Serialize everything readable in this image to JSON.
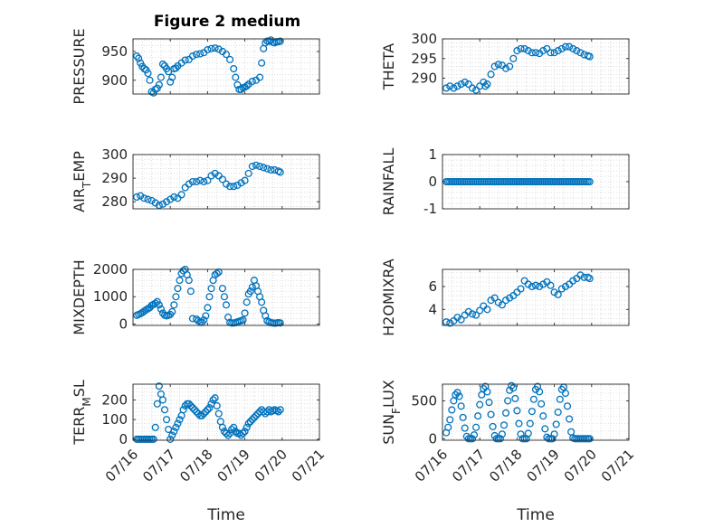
{
  "figure_title": "Figure 2 medium",
  "colors": {
    "marker": "#0072BD",
    "axis": "#262626",
    "grid": "#cfcfcf"
  },
  "shared_x": {
    "label": "Time",
    "ticks": [
      16,
      17,
      18,
      19,
      20,
      21
    ],
    "tick_labels": [
      "07/16",
      "07/17",
      "07/18",
      "07/19",
      "07/20",
      "07/21"
    ],
    "range": [
      16,
      21
    ]
  },
  "chart_data": [
    {
      "type": "scatter",
      "ylabel": "PRESSURE",
      "ylim": [
        876,
        972
      ],
      "yticks": [
        900,
        950
      ],
      "grid": true,
      "x": [
        16.1,
        16.15,
        16.2,
        16.25,
        16.3,
        16.35,
        16.4,
        16.45,
        16.5,
        16.55,
        16.6,
        16.65,
        16.7,
        16.75,
        16.8,
        16.85,
        16.9,
        16.95,
        17.0,
        17.05,
        17.1,
        17.15,
        17.2,
        17.3,
        17.4,
        17.5,
        17.6,
        17.7,
        17.8,
        17.9,
        18.0,
        18.1,
        18.2,
        18.3,
        18.4,
        18.5,
        18.6,
        18.7,
        18.75,
        18.8,
        18.85,
        18.9,
        18.95,
        19.0,
        19.05,
        19.1,
        19.2,
        19.3,
        19.4,
        19.45,
        19.5,
        19.55,
        19.6,
        19.65,
        19.7,
        19.75,
        19.8,
        19.85,
        19.9,
        19.95
      ],
      "y": [
        942,
        938,
        930,
        924,
        920,
        918,
        912,
        900,
        880,
        878,
        884,
        886,
        892,
        905,
        928,
        925,
        920,
        915,
        897,
        905,
        920,
        921,
        925,
        930,
        935,
        936,
        942,
        945,
        946,
        948,
        953,
        955,
        956,
        954,
        950,
        945,
        936,
        920,
        905,
        892,
        884,
        884,
        887,
        888,
        890,
        893,
        898,
        900,
        905,
        930,
        955,
        965,
        968,
        968,
        970,
        966,
        965,
        967,
        967,
        968
      ]
    },
    {
      "type": "scatter",
      "ylabel": "THETA",
      "ylim": [
        286,
        300
      ],
      "yticks": [
        290,
        295,
        300
      ],
      "grid": true,
      "x": [
        16.1,
        16.2,
        16.3,
        16.4,
        16.5,
        16.6,
        16.7,
        16.8,
        16.9,
        17.0,
        17.1,
        17.15,
        17.2,
        17.3,
        17.4,
        17.5,
        17.6,
        17.7,
        17.8,
        17.9,
        18.0,
        18.1,
        18.2,
        18.3,
        18.4,
        18.5,
        18.6,
        18.7,
        18.8,
        18.9,
        19.0,
        19.1,
        19.2,
        19.3,
        19.4,
        19.5,
        19.6,
        19.7,
        19.8,
        19.9,
        19.95
      ],
      "y": [
        287.5,
        288,
        287.5,
        288,
        288.5,
        289,
        288.5,
        287.5,
        287,
        288,
        289,
        288,
        288.5,
        291,
        293,
        293.5,
        293.3,
        292.5,
        293,
        295,
        297,
        297.5,
        297.5,
        297,
        296.5,
        296.5,
        296.3,
        297,
        297.5,
        296.5,
        296.5,
        297,
        297.5,
        298,
        298,
        297.5,
        297,
        296.5,
        296,
        295.7,
        295.5
      ]
    },
    {
      "type": "scatter",
      "ylabel": "AIR_TEMP",
      "ylim": [
        277,
        300
      ],
      "yticks": [
        280,
        290,
        300
      ],
      "grid": true,
      "x": [
        16.1,
        16.2,
        16.3,
        16.4,
        16.5,
        16.6,
        16.7,
        16.8,
        16.9,
        17.0,
        17.1,
        17.2,
        17.3,
        17.4,
        17.5,
        17.6,
        17.7,
        17.8,
        17.9,
        18.0,
        18.1,
        18.2,
        18.3,
        18.4,
        18.5,
        18.6,
        18.7,
        18.8,
        18.9,
        19.0,
        19.1,
        19.2,
        19.3,
        19.4,
        19.5,
        19.6,
        19.7,
        19.8,
        19.9,
        19.95
      ],
      "y": [
        282,
        282.5,
        281.5,
        281,
        280.5,
        279.5,
        278.5,
        279,
        280,
        281,
        282,
        281.5,
        283,
        286,
        287.5,
        288.5,
        288.5,
        289,
        288.5,
        289,
        291,
        292,
        291,
        289.5,
        287.5,
        286.5,
        286.5,
        287,
        288,
        289,
        292,
        295,
        295.5,
        295,
        294.5,
        294,
        293.5,
        293.5,
        293,
        292.5
      ]
    },
    {
      "type": "scatter",
      "ylabel": "RAINFALL",
      "ylim": [
        -1,
        1
      ],
      "yticks": [
        -1,
        0,
        1
      ],
      "grid": true,
      "x_range": [
        16.1,
        19.95
      ],
      "y_constant": 0,
      "n_points": 80
    },
    {
      "type": "scatter",
      "ylabel": "MIXDEPTH",
      "ylim": [
        -50,
        2000
      ],
      "yticks": [
        0,
        1000,
        2000
      ],
      "grid": true,
      "x": [
        16.1,
        16.15,
        16.2,
        16.25,
        16.3,
        16.35,
        16.4,
        16.45,
        16.5,
        16.55,
        16.6,
        16.65,
        16.7,
        16.75,
        16.8,
        16.85,
        16.9,
        16.95,
        17.0,
        17.05,
        17.1,
        17.15,
        17.2,
        17.25,
        17.3,
        17.35,
        17.4,
        17.45,
        17.5,
        17.55,
        17.6,
        17.7,
        17.75,
        17.8,
        17.85,
        17.9,
        17.95,
        18.0,
        18.05,
        18.1,
        18.15,
        18.2,
        18.25,
        18.3,
        18.4,
        18.45,
        18.5,
        18.55,
        18.6,
        18.65,
        18.7,
        18.75,
        18.8,
        18.85,
        18.9,
        18.95,
        19.0,
        19.05,
        19.1,
        19.15,
        19.2,
        19.25,
        19.3,
        19.35,
        19.4,
        19.45,
        19.5,
        19.55,
        19.6,
        19.65,
        19.7,
        19.75,
        19.8,
        19.85,
        19.9,
        19.95
      ],
      "y": [
        320,
        350,
        380,
        420,
        470,
        520,
        560,
        600,
        680,
        720,
        760,
        820,
        700,
        550,
        400,
        320,
        300,
        320,
        350,
        450,
        700,
        1000,
        1300,
        1600,
        1850,
        1950,
        2000,
        1800,
        1600,
        1200,
        200,
        180,
        120,
        80,
        60,
        150,
        300,
        600,
        1000,
        1300,
        1600,
        1800,
        1850,
        1900,
        1300,
        1000,
        700,
        250,
        60,
        40,
        40,
        50,
        80,
        100,
        120,
        150,
        400,
        800,
        1100,
        1200,
        1350,
        1600,
        1400,
        1200,
        1000,
        800,
        500,
        300,
        120,
        80,
        50,
        40,
        30,
        40,
        50,
        40
      ]
    },
    {
      "type": "scatter",
      "ylabel": "H2OMIXRA",
      "ylim": [
        2.6,
        7.5
      ],
      "yticks": [
        4,
        6
      ],
      "grid": true,
      "x": [
        16.1,
        16.2,
        16.3,
        16.4,
        16.5,
        16.6,
        16.7,
        16.8,
        16.9,
        17.0,
        17.1,
        17.2,
        17.3,
        17.4,
        17.5,
        17.6,
        17.7,
        17.8,
        17.9,
        18.0,
        18.1,
        18.2,
        18.3,
        18.4,
        18.5,
        18.6,
        18.7,
        18.8,
        18.9,
        19.0,
        19.1,
        19.2,
        19.3,
        19.4,
        19.5,
        19.6,
        19.7,
        19.8,
        19.9,
        19.95
      ],
      "y": [
        2.9,
        2.8,
        3.0,
        3.3,
        3.1,
        3.5,
        3.8,
        3.6,
        3.5,
        3.9,
        4.3,
        4.0,
        4.8,
        5.0,
        4.6,
        4.4,
        4.8,
        5.0,
        5.2,
        5.5,
        5.8,
        6.5,
        6.2,
        6.0,
        6.1,
        6.0,
        6.2,
        6.4,
        6.1,
        5.5,
        5.3,
        5.8,
        6.0,
        6.2,
        6.5,
        6.7,
        7.0,
        6.8,
        6.8,
        6.7
      ]
    },
    {
      "type": "scatter",
      "ylabel": "TERR_MSL",
      "ylim": [
        -5,
        280
      ],
      "yticks": [
        0,
        100,
        200
      ],
      "grid": true,
      "x": [
        16.1,
        16.15,
        16.2,
        16.25,
        16.3,
        16.35,
        16.4,
        16.45,
        16.5,
        16.55,
        16.6,
        16.65,
        16.7,
        16.75,
        16.8,
        16.85,
        16.9,
        16.95,
        17.0,
        17.05,
        17.1,
        17.15,
        17.2,
        17.25,
        17.3,
        17.35,
        17.4,
        17.45,
        17.5,
        17.55,
        17.6,
        17.65,
        17.7,
        17.75,
        17.8,
        17.85,
        17.9,
        17.95,
        18.0,
        18.05,
        18.1,
        18.15,
        18.2,
        18.25,
        18.3,
        18.35,
        18.4,
        18.45,
        18.5,
        18.55,
        18.6,
        18.65,
        18.7,
        18.75,
        18.8,
        18.85,
        18.9,
        18.95,
        19.0,
        19.05,
        19.1,
        19.15,
        19.2,
        19.25,
        19.3,
        19.35,
        19.4,
        19.45,
        19.5,
        19.55,
        19.6,
        19.65,
        19.7,
        19.75,
        19.8,
        19.85,
        19.9,
        19.95
      ],
      "y": [
        0,
        0,
        0,
        0,
        0,
        0,
        0,
        0,
        0,
        0,
        60,
        180,
        270,
        230,
        200,
        150,
        100,
        50,
        0,
        20,
        40,
        60,
        80,
        100,
        120,
        150,
        170,
        180,
        180,
        170,
        160,
        150,
        140,
        130,
        120,
        120,
        130,
        140,
        150,
        160,
        180,
        200,
        210,
        170,
        130,
        90,
        60,
        40,
        30,
        20,
        30,
        50,
        60,
        40,
        30,
        30,
        20,
        30,
        40,
        60,
        80,
        90,
        100,
        110,
        120,
        130,
        140,
        150,
        140,
        130,
        140,
        150,
        140,
        145,
        150,
        145,
        140,
        150
      ]
    },
    {
      "type": "scatter",
      "ylabel": "SUN_FLUX",
      "ylim": [
        -20,
        720
      ],
      "yticks": [
        0,
        500
      ],
      "grid": true,
      "x": [
        16.1,
        16.15,
        16.2,
        16.25,
        16.3,
        16.35,
        16.4,
        16.45,
        16.5,
        16.55,
        16.6,
        16.65,
        16.7,
        16.75,
        16.8,
        16.85,
        16.9,
        16.95,
        17.0,
        17.05,
        17.1,
        17.15,
        17.2,
        17.25,
        17.3,
        17.35,
        17.4,
        17.45,
        17.5,
        17.55,
        17.6,
        17.65,
        17.7,
        17.75,
        17.8,
        17.85,
        17.9,
        17.95,
        18.0,
        18.05,
        18.1,
        18.15,
        18.2,
        18.25,
        18.3,
        18.35,
        18.4,
        18.45,
        18.5,
        18.55,
        18.6,
        18.65,
        18.7,
        18.75,
        18.8,
        18.85,
        18.9,
        18.95,
        19.0,
        19.05,
        19.1,
        19.15,
        19.2,
        19.25,
        19.3,
        19.35,
        19.4,
        19.45,
        19.5,
        19.55,
        19.6,
        19.65,
        19.7,
        19.75,
        19.8,
        19.85,
        19.9,
        19.95
      ],
      "y": [
        80,
        150,
        250,
        380,
        500,
        580,
        610,
        560,
        430,
        280,
        140,
        30,
        0,
        0,
        0,
        50,
        150,
        300,
        450,
        580,
        660,
        690,
        620,
        480,
        320,
        160,
        40,
        0,
        0,
        0,
        60,
        180,
        340,
        500,
        640,
        700,
        670,
        530,
        370,
        200,
        60,
        0,
        0,
        0,
        70,
        200,
        360,
        520,
        650,
        690,
        620,
        460,
        300,
        130,
        20,
        0,
        0,
        0,
        60,
        190,
        350,
        520,
        650,
        680,
        600,
        430,
        260,
        90,
        10,
        0,
        0,
        0,
        0,
        0,
        0,
        0,
        0,
        0
      ]
    }
  ]
}
